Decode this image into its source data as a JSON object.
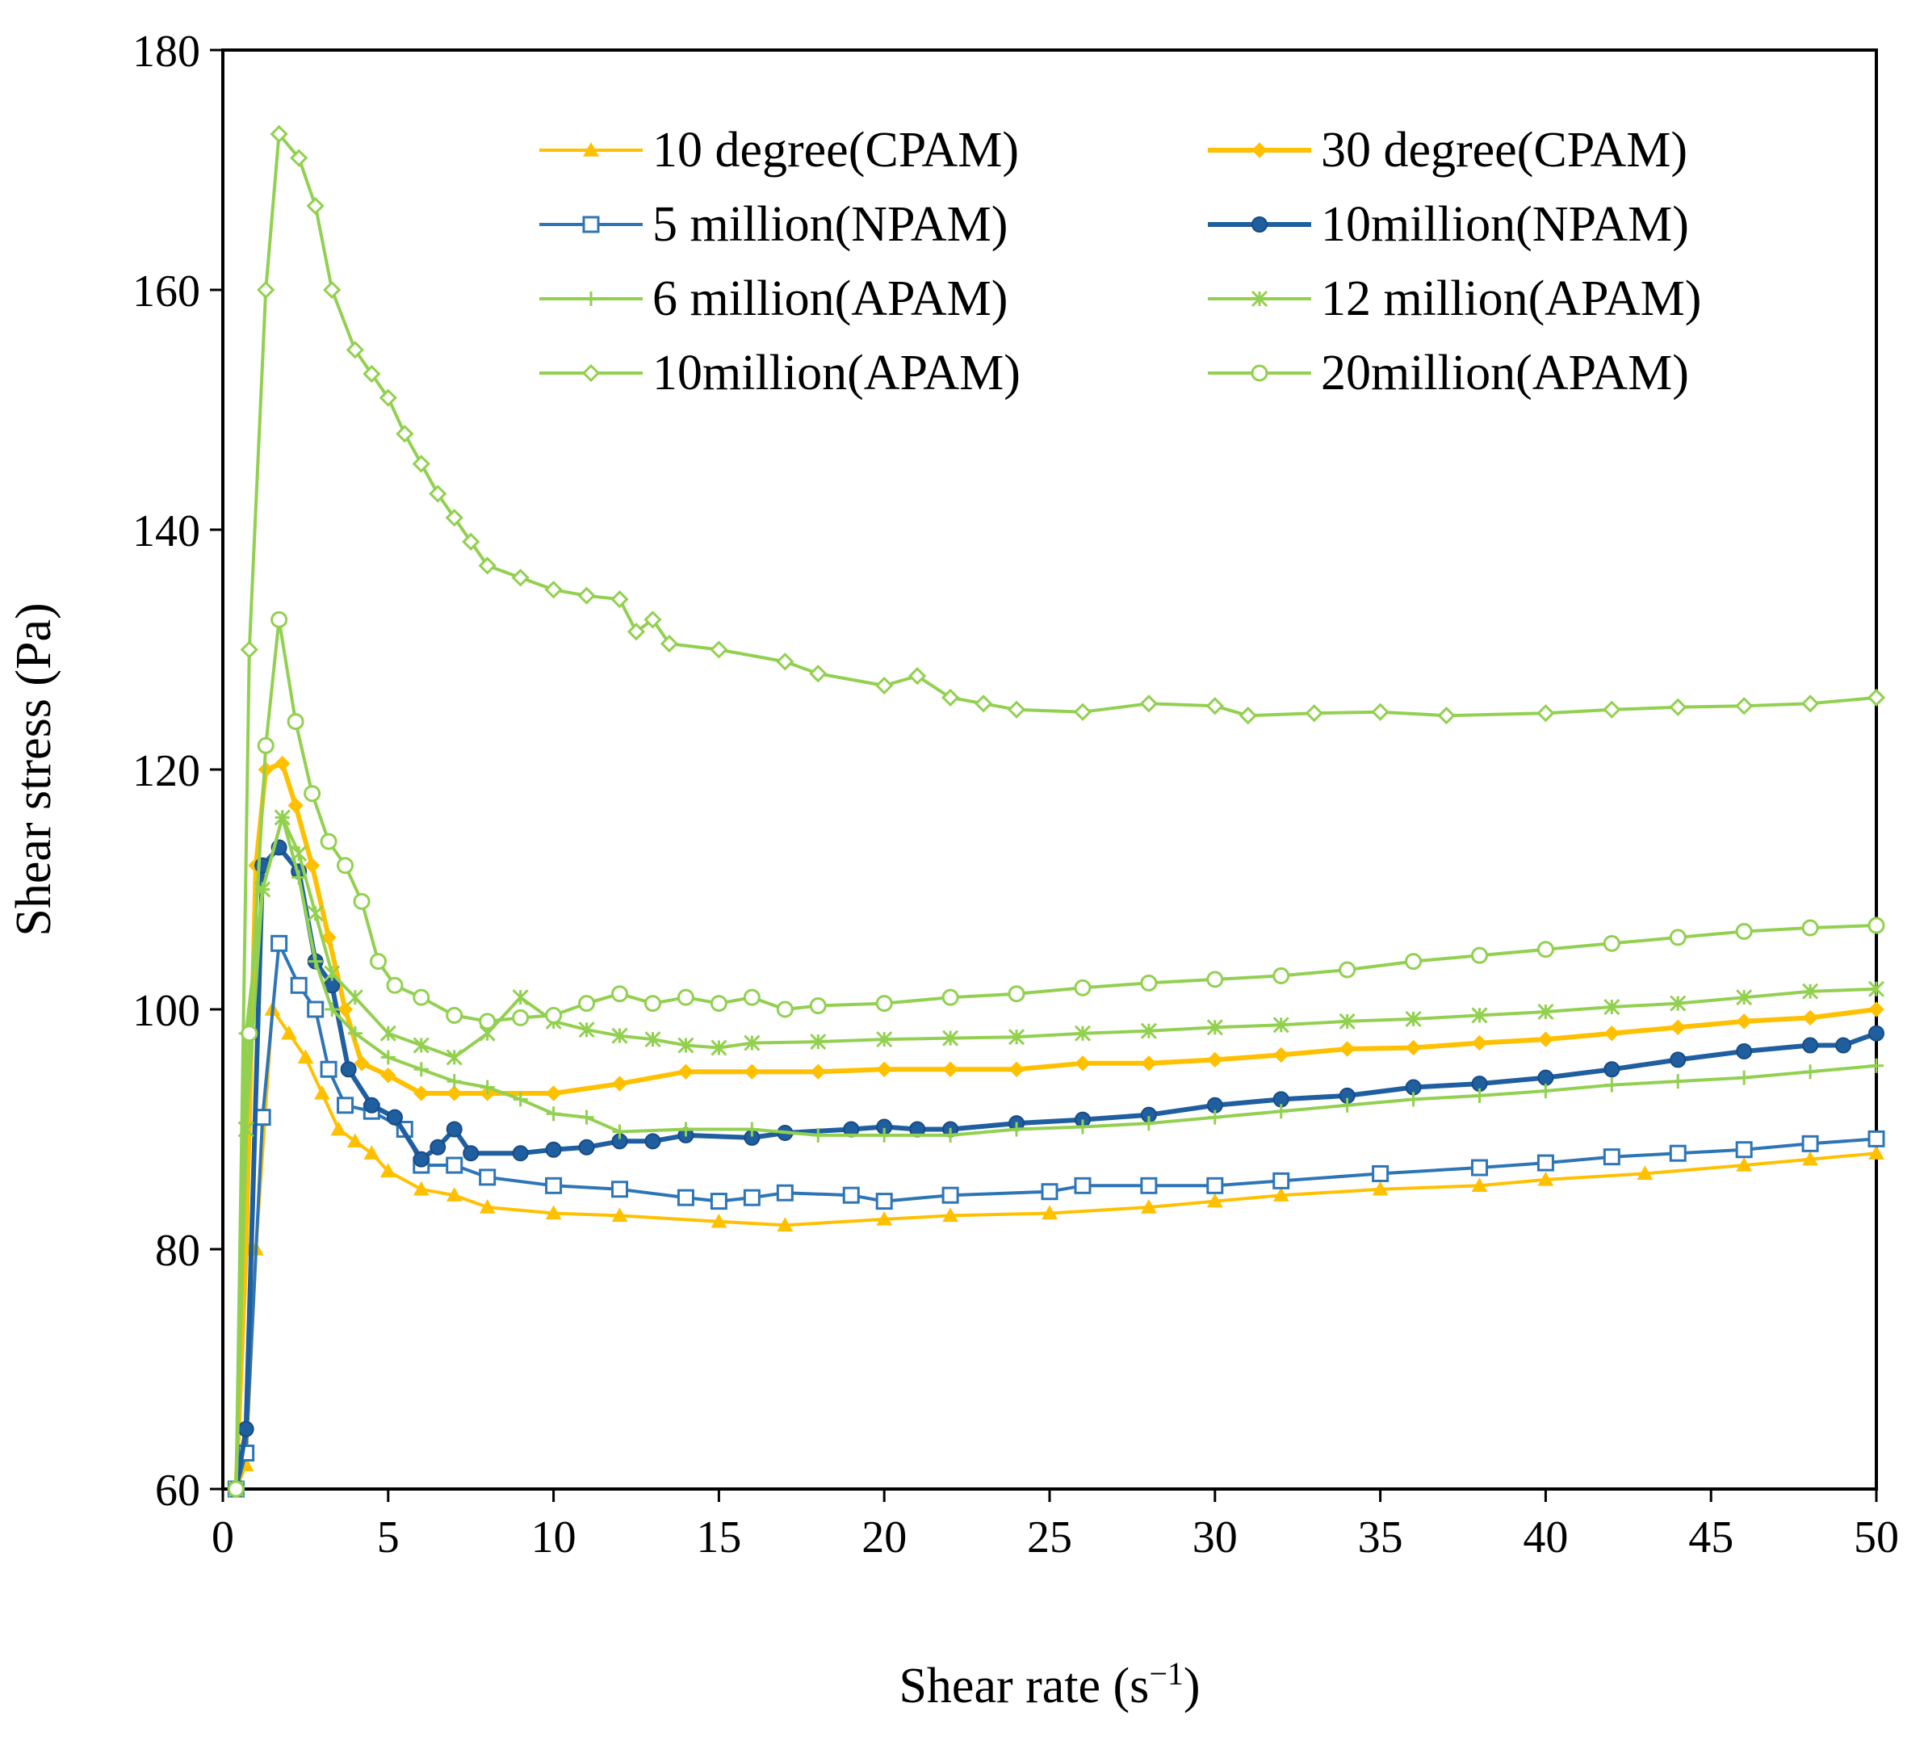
{
  "chart_data": {
    "type": "line",
    "title": "",
    "xlabel": "Shear rate (s",
    "xlabel_sup": "−1",
    "xlabel_close": ")",
    "ylabel": "Shear stress (Pa)",
    "xlim": [
      0,
      50
    ],
    "ylim": [
      60,
      180
    ],
    "xticks": [
      0,
      5,
      10,
      15,
      20,
      25,
      30,
      35,
      40,
      45,
      50
    ],
    "yticks": [
      60,
      80,
      100,
      120,
      140,
      160,
      180
    ],
    "grid": false,
    "legend_position": "top-right",
    "series": [
      {
        "name": "10 degree(CPAM)",
        "color": "#FFC000",
        "marker": "triangle",
        "width": 4,
        "points": [
          [
            0.4,
            60
          ],
          [
            0.7,
            62
          ],
          [
            1,
            80
          ],
          [
            1.5,
            100
          ],
          [
            2,
            98
          ],
          [
            2.5,
            96
          ],
          [
            3,
            93
          ],
          [
            3.5,
            90
          ],
          [
            4,
            89
          ],
          [
            4.5,
            88
          ],
          [
            5,
            86.5
          ],
          [
            6,
            85
          ],
          [
            7,
            84.5
          ],
          [
            8,
            83.5
          ],
          [
            10,
            83
          ],
          [
            12,
            82.8
          ],
          [
            15,
            82.3
          ],
          [
            17,
            82
          ],
          [
            20,
            82.5
          ],
          [
            22,
            82.8
          ],
          [
            25,
            83
          ],
          [
            28,
            83.5
          ],
          [
            30,
            84
          ],
          [
            32,
            84.5
          ],
          [
            35,
            85
          ],
          [
            38,
            85.3
          ],
          [
            40,
            85.8
          ],
          [
            43,
            86.3
          ],
          [
            46,
            87
          ],
          [
            48,
            87.5
          ],
          [
            50,
            88
          ]
        ]
      },
      {
        "name": "30 degree(CPAM)",
        "color": "#FFC000",
        "marker": "diamond",
        "width": 6,
        "points": [
          [
            0.4,
            60
          ],
          [
            0.7,
            80
          ],
          [
            1,
            112
          ],
          [
            1.3,
            120
          ],
          [
            1.8,
            120.5
          ],
          [
            2.2,
            117
          ],
          [
            2.7,
            112
          ],
          [
            3.2,
            106
          ],
          [
            3.7,
            100
          ],
          [
            4.2,
            95.5
          ],
          [
            5,
            94.5
          ],
          [
            6,
            93
          ],
          [
            7,
            93
          ],
          [
            8,
            93
          ],
          [
            10,
            93
          ],
          [
            12,
            93.8
          ],
          [
            14,
            94.8
          ],
          [
            16,
            94.8
          ],
          [
            18,
            94.8
          ],
          [
            20,
            95
          ],
          [
            22,
            95
          ],
          [
            24,
            95
          ],
          [
            26,
            95.5
          ],
          [
            28,
            95.5
          ],
          [
            30,
            95.8
          ],
          [
            32,
            96.2
          ],
          [
            34,
            96.7
          ],
          [
            36,
            96.8
          ],
          [
            38,
            97.2
          ],
          [
            40,
            97.5
          ],
          [
            42,
            98
          ],
          [
            44,
            98.5
          ],
          [
            46,
            99
          ],
          [
            48,
            99.3
          ],
          [
            50,
            100
          ]
        ]
      },
      {
        "name": "5 million(NPAM)",
        "color": "#2E75B6",
        "marker": "square",
        "width": 4,
        "points": [
          [
            0.4,
            60
          ],
          [
            0.7,
            63
          ],
          [
            1.2,
            91
          ],
          [
            1.7,
            105.5
          ],
          [
            2.3,
            102
          ],
          [
            2.8,
            100
          ],
          [
            3.2,
            95
          ],
          [
            3.7,
            92
          ],
          [
            4.5,
            91.5
          ],
          [
            5.5,
            90
          ],
          [
            6,
            87
          ],
          [
            7,
            87
          ],
          [
            8,
            86
          ],
          [
            10,
            85.3
          ],
          [
            12,
            85
          ],
          [
            14,
            84.3
          ],
          [
            15,
            84
          ],
          [
            16,
            84.3
          ],
          [
            17,
            84.7
          ],
          [
            19,
            84.5
          ],
          [
            20,
            84
          ],
          [
            22,
            84.5
          ],
          [
            25,
            84.8
          ],
          [
            26,
            85.3
          ],
          [
            28,
            85.3
          ],
          [
            30,
            85.3
          ],
          [
            32,
            85.7
          ],
          [
            35,
            86.3
          ],
          [
            38,
            86.8
          ],
          [
            40,
            87.2
          ],
          [
            42,
            87.7
          ],
          [
            44,
            88
          ],
          [
            46,
            88.3
          ],
          [
            48,
            88.8
          ],
          [
            50,
            89.2
          ]
        ]
      },
      {
        "name": "10million(NPAM)",
        "color": "#1F5FA0",
        "marker": "circle",
        "width": 6,
        "points": [
          [
            0.4,
            60
          ],
          [
            0.7,
            65
          ],
          [
            1.2,
            112
          ],
          [
            1.7,
            113.5
          ],
          [
            2.3,
            111.5
          ],
          [
            2.8,
            104
          ],
          [
            3.3,
            102
          ],
          [
            3.8,
            95
          ],
          [
            4.5,
            92
          ],
          [
            5.2,
            91
          ],
          [
            6,
            87.5
          ],
          [
            6.5,
            88.5
          ],
          [
            7,
            90
          ],
          [
            7.5,
            88
          ],
          [
            9,
            88
          ],
          [
            10,
            88.3
          ],
          [
            11,
            88.5
          ],
          [
            12,
            89
          ],
          [
            13,
            89
          ],
          [
            14,
            89.5
          ],
          [
            16,
            89.3
          ],
          [
            17,
            89.7
          ],
          [
            19,
            90
          ],
          [
            20,
            90.2
          ],
          [
            21,
            90
          ],
          [
            22,
            90
          ],
          [
            24,
            90.5
          ],
          [
            26,
            90.8
          ],
          [
            28,
            91.2
          ],
          [
            30,
            92
          ],
          [
            32,
            92.5
          ],
          [
            34,
            92.8
          ],
          [
            36,
            93.5
          ],
          [
            38,
            93.8
          ],
          [
            40,
            94.3
          ],
          [
            42,
            95
          ],
          [
            44,
            95.8
          ],
          [
            46,
            96.5
          ],
          [
            48,
            97
          ],
          [
            49,
            97
          ],
          [
            50,
            98
          ]
        ]
      },
      {
        "name": "6 million(APAM)",
        "color": "#92D050",
        "marker": "plus",
        "width": 4,
        "points": [
          [
            0.4,
            60
          ],
          [
            0.7,
            98
          ],
          [
            1.2,
            110
          ],
          [
            1.8,
            116
          ],
          [
            2.3,
            111
          ],
          [
            2.8,
            104
          ],
          [
            3.3,
            100
          ],
          [
            4,
            98
          ],
          [
            5,
            96
          ],
          [
            6,
            95
          ],
          [
            7,
            94
          ],
          [
            8,
            93.5
          ],
          [
            9,
            92.5
          ],
          [
            10,
            91.3
          ],
          [
            11,
            91
          ],
          [
            12,
            89.8
          ],
          [
            14,
            90
          ],
          [
            16,
            90
          ],
          [
            18,
            89.5
          ],
          [
            20,
            89.5
          ],
          [
            22,
            89.5
          ],
          [
            24,
            90
          ],
          [
            26,
            90.2
          ],
          [
            28,
            90.5
          ],
          [
            30,
            91
          ],
          [
            32,
            91.5
          ],
          [
            34,
            92
          ],
          [
            36,
            92.5
          ],
          [
            38,
            92.8
          ],
          [
            40,
            93.2
          ],
          [
            42,
            93.7
          ],
          [
            44,
            94
          ],
          [
            46,
            94.3
          ],
          [
            48,
            94.8
          ],
          [
            50,
            95.3
          ]
        ]
      },
      {
        "name": "12 million(APAM)",
        "color": "#92D050",
        "marker": "x",
        "width": 4,
        "points": [
          [
            0.4,
            60
          ],
          [
            0.7,
            90
          ],
          [
            1.2,
            110
          ],
          [
            1.8,
            116
          ],
          [
            2.3,
            113
          ],
          [
            2.8,
            108
          ],
          [
            3.3,
            103
          ],
          [
            4,
            101
          ],
          [
            5,
            98
          ],
          [
            6,
            97
          ],
          [
            7,
            96
          ],
          [
            8,
            98
          ],
          [
            9,
            101
          ],
          [
            10,
            99
          ],
          [
            11,
            98.3
          ],
          [
            12,
            97.8
          ],
          [
            13,
            97.5
          ],
          [
            14,
            97
          ],
          [
            15,
            96.8
          ],
          [
            16,
            97.2
          ],
          [
            18,
            97.3
          ],
          [
            20,
            97.5
          ],
          [
            22,
            97.6
          ],
          [
            24,
            97.7
          ],
          [
            26,
            98
          ],
          [
            28,
            98.2
          ],
          [
            30,
            98.5
          ],
          [
            32,
            98.7
          ],
          [
            34,
            99
          ],
          [
            36,
            99.2
          ],
          [
            38,
            99.5
          ],
          [
            40,
            99.8
          ],
          [
            42,
            100.2
          ],
          [
            44,
            100.5
          ],
          [
            46,
            101
          ],
          [
            48,
            101.5
          ],
          [
            50,
            101.7
          ]
        ]
      },
      {
        "name": "10million(APAM)",
        "color": "#92D050",
        "marker": "diamond-open",
        "width": 4,
        "points": [
          [
            0.4,
            60
          ],
          [
            0.8,
            130
          ],
          [
            1.3,
            160
          ],
          [
            1.7,
            173
          ],
          [
            2.3,
            171
          ],
          [
            2.8,
            167
          ],
          [
            3.3,
            160
          ],
          [
            4,
            155
          ],
          [
            4.5,
            153
          ],
          [
            5,
            151
          ],
          [
            5.5,
            148
          ],
          [
            6,
            145.5
          ],
          [
            6.5,
            143
          ],
          [
            7,
            141
          ],
          [
            7.5,
            139
          ],
          [
            8,
            137
          ],
          [
            9,
            136
          ],
          [
            10,
            135
          ],
          [
            11,
            134.5
          ],
          [
            12,
            134.2
          ],
          [
            12.5,
            131.5
          ],
          [
            13,
            132.5
          ],
          [
            13.5,
            130.5
          ],
          [
            15,
            130
          ],
          [
            17,
            129
          ],
          [
            18,
            128
          ],
          [
            20,
            127
          ],
          [
            21,
            127.8
          ],
          [
            22,
            126
          ],
          [
            23,
            125.5
          ],
          [
            24,
            125
          ],
          [
            26,
            124.8
          ],
          [
            28,
            125.5
          ],
          [
            30,
            125.3
          ],
          [
            31,
            124.5
          ],
          [
            33,
            124.7
          ],
          [
            35,
            124.8
          ],
          [
            37,
            124.5
          ],
          [
            40,
            124.7
          ],
          [
            42,
            125
          ],
          [
            44,
            125.2
          ],
          [
            46,
            125.3
          ],
          [
            48,
            125.5
          ],
          [
            50,
            126
          ]
        ]
      },
      {
        "name": "20million(APAM)",
        "color": "#92D050",
        "marker": "circle-open",
        "width": 4,
        "points": [
          [
            0.4,
            60
          ],
          [
            0.8,
            98
          ],
          [
            1.3,
            122
          ],
          [
            1.7,
            132.5
          ],
          [
            2.2,
            124
          ],
          [
            2.7,
            118
          ],
          [
            3.2,
            114
          ],
          [
            3.7,
            112
          ],
          [
            4.2,
            109
          ],
          [
            4.7,
            104
          ],
          [
            5.2,
            102
          ],
          [
            6,
            101
          ],
          [
            7,
            99.5
          ],
          [
            8,
            99
          ],
          [
            9,
            99.3
          ],
          [
            10,
            99.5
          ],
          [
            11,
            100.5
          ],
          [
            12,
            101.3
          ],
          [
            13,
            100.5
          ],
          [
            14,
            101
          ],
          [
            15,
            100.5
          ],
          [
            16,
            101
          ],
          [
            17,
            100
          ],
          [
            18,
            100.3
          ],
          [
            20,
            100.5
          ],
          [
            22,
            101
          ],
          [
            24,
            101.3
          ],
          [
            26,
            101.8
          ],
          [
            28,
            102.2
          ],
          [
            30,
            102.5
          ],
          [
            32,
            102.8
          ],
          [
            34,
            103.3
          ],
          [
            36,
            104
          ],
          [
            38,
            104.5
          ],
          [
            40,
            105
          ],
          [
            42,
            105.5
          ],
          [
            44,
            106
          ],
          [
            46,
            106.5
          ],
          [
            48,
            106.8
          ],
          [
            50,
            107
          ]
        ]
      }
    ]
  }
}
